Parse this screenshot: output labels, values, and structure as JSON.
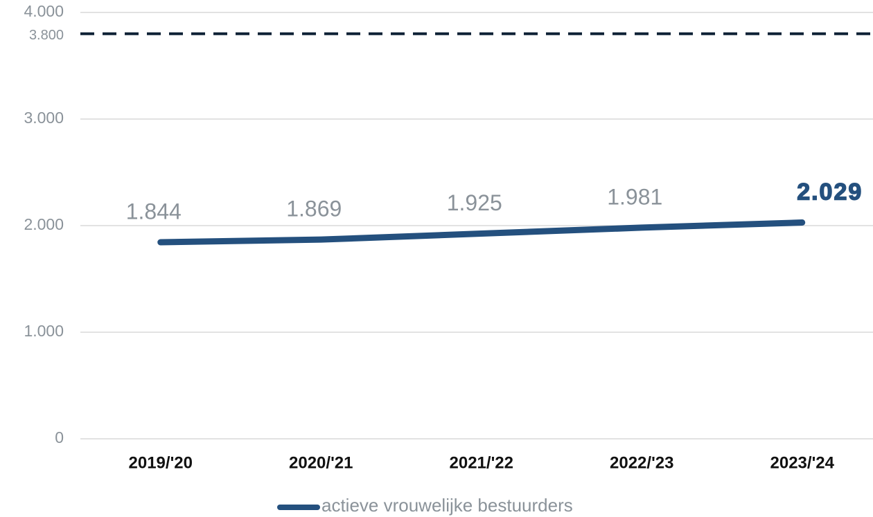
{
  "chart_data": {
    "type": "line",
    "categories": [
      "2019/'20",
      "2020/'21",
      "2021/'22",
      "2022/'23",
      "2023/'24"
    ],
    "series": [
      {
        "name": "actieve vrouwelijke bestuurders",
        "color": "#24507e",
        "values": [
          1844,
          1869,
          1925,
          1981,
          2029
        ],
        "value_labels": [
          "1.844",
          "1.869",
          "1.925",
          "1.981",
          "2.029"
        ]
      }
    ],
    "ylim": [
      0,
      4000
    ],
    "yticks": [
      0,
      {
        "value": 1000,
        "label": "1.000"
      },
      {
        "value": 2000,
        "label": "2.000"
      },
      {
        "value": 3000,
        "label": "3.000"
      },
      {
        "value": 4000,
        "label": "4.000"
      }
    ],
    "reference_line": {
      "value": 3800,
      "label": "3.800",
      "color": "#0f2236"
    },
    "grid": true,
    "legend": "bottom"
  }
}
